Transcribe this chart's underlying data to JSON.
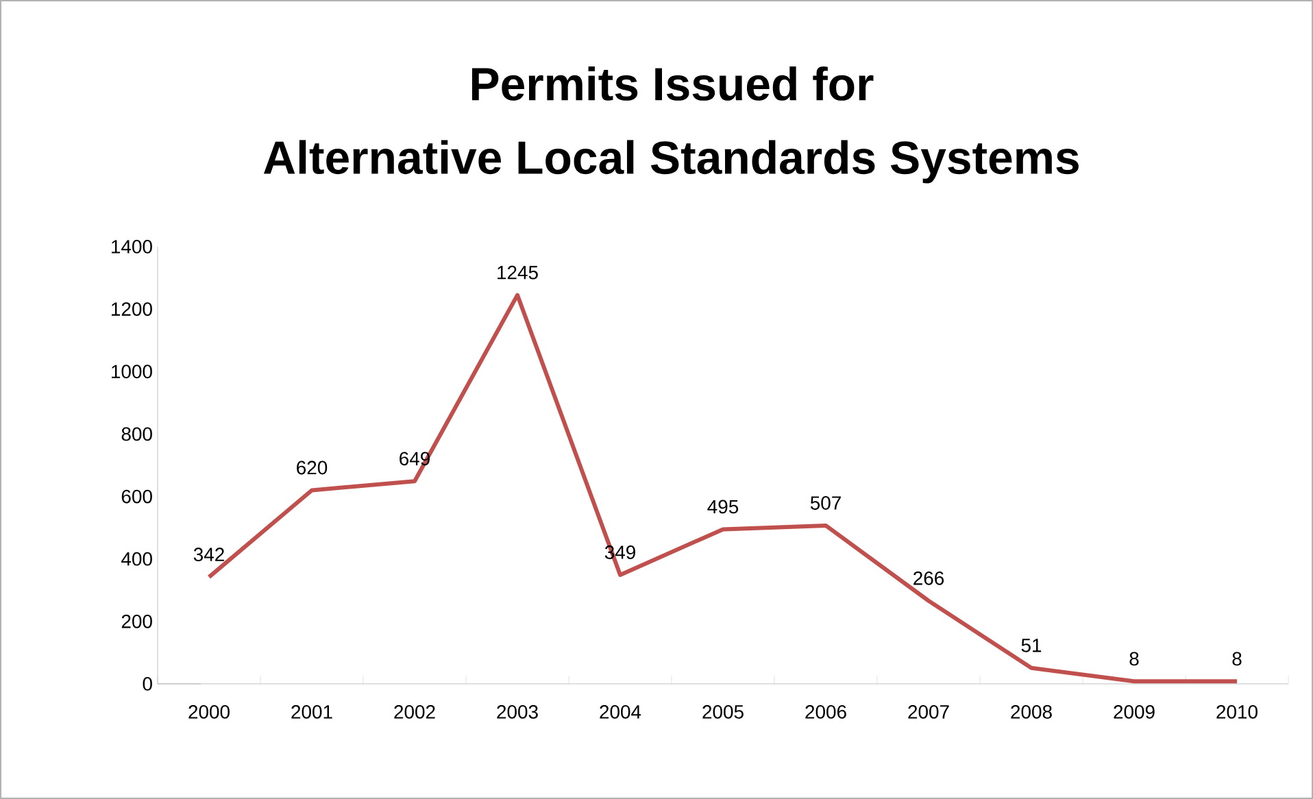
{
  "chart_data": {
    "type": "line",
    "title": "Permits Issued for",
    "subtitle": "Alternative Local Standards Systems",
    "categories": [
      "2000",
      "2001",
      "2002",
      "2003",
      "2004",
      "2005",
      "2006",
      "2007",
      "2008",
      "2009",
      "2010"
    ],
    "values": [
      342,
      620,
      649,
      1245,
      349,
      495,
      507,
      266,
      51,
      8,
      8
    ],
    "color": "#c0504d",
    "ylim": [
      0,
      1400
    ],
    "yticks": [
      0,
      200,
      400,
      600,
      800,
      1000,
      1200,
      1400
    ],
    "grid": false,
    "marker": "none",
    "line_style": "solid",
    "data_labels": true
  }
}
